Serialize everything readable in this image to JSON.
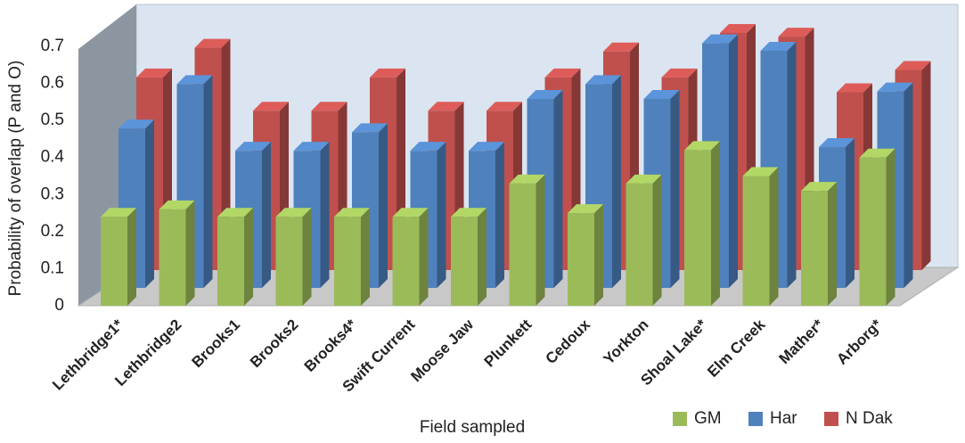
{
  "chart_data": {
    "type": "bar3d",
    "x_label": "Field sampled",
    "y_label": "Probability of overlap (P and O)",
    "categories": [
      "Lethbridge1*",
      "Lethbridge2",
      "Brooks1",
      "Brooks2",
      "Brooks4*",
      "Swift Current",
      "Moose Jaw",
      "Plunkett",
      "Cedoux",
      "Yorkton",
      "Shoal Lake*",
      "Elm Creek",
      "Mather*",
      "Arborg*"
    ],
    "series": [
      {
        "name": "GM",
        "color": "#9bbb59",
        "values": [
          0.24,
          0.26,
          0.24,
          0.24,
          0.24,
          0.24,
          0.24,
          0.33,
          0.25,
          0.33,
          0.42,
          0.35,
          0.31,
          0.4
        ]
      },
      {
        "name": "Har",
        "color": "#4f81bd",
        "values": [
          0.43,
          0.55,
          0.37,
          0.37,
          0.42,
          0.37,
          0.37,
          0.51,
          0.55,
          0.51,
          0.66,
          0.64,
          0.38,
          0.53
        ]
      },
      {
        "name": "N Dak",
        "color": "#c0504d",
        "values": [
          0.52,
          0.6,
          0.43,
          0.43,
          0.52,
          0.43,
          0.43,
          0.52,
          0.59,
          0.52,
          0.64,
          0.63,
          0.48,
          0.54
        ]
      }
    ],
    "ylim": [
      0,
      0.7
    ],
    "yticks": [
      0,
      0.1,
      0.2,
      0.3,
      0.4,
      0.5,
      0.6,
      0.7
    ],
    "grid": false,
    "legend": "bottom-right"
  }
}
